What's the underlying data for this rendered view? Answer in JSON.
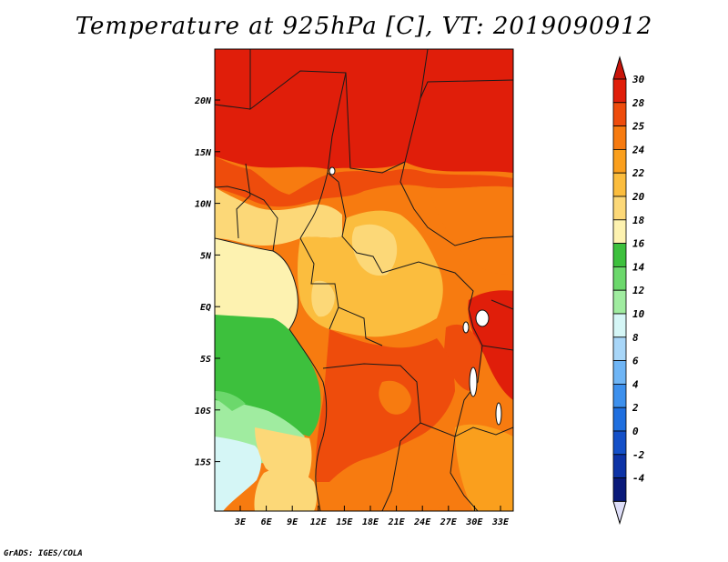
{
  "title": "Temperature at 925hPa [C], VT: 2019090912",
  "credit": "GrADS: IGES/COLA",
  "map": {
    "lat_ticks": [
      "20N",
      "15N",
      "10N",
      "5N",
      "EQ",
      "5S",
      "10S",
      "15S"
    ],
    "lon_ticks": [
      "3E",
      "6E",
      "9E",
      "12E",
      "15E",
      "18E",
      "21E",
      "24E",
      "27E",
      "30E",
      "33E"
    ]
  },
  "colorbar": {
    "labels": [
      "30",
      "28",
      "25",
      "24",
      "22",
      "20",
      "18",
      "16",
      "14",
      "12",
      "10",
      "8",
      "6",
      "4",
      "2",
      "0",
      "-2",
      "-4"
    ],
    "colors": [
      "#e01e0a",
      "#ee4c0c",
      "#f77b10",
      "#fa9f1d",
      "#fbbd3e",
      "#fcd878",
      "#fdf2b0",
      "#3dc03d",
      "#6cd86c",
      "#a0eca0",
      "#d5f6f6",
      "#a8d6f8",
      "#6fb5f5",
      "#3d90ed",
      "#1f6fdf",
      "#1450c8",
      "#0d33a6",
      "#0a1a7a"
    ],
    "top_tip_color": "#c8140a",
    "bottom_tip_color": "#dedef8"
  }
}
